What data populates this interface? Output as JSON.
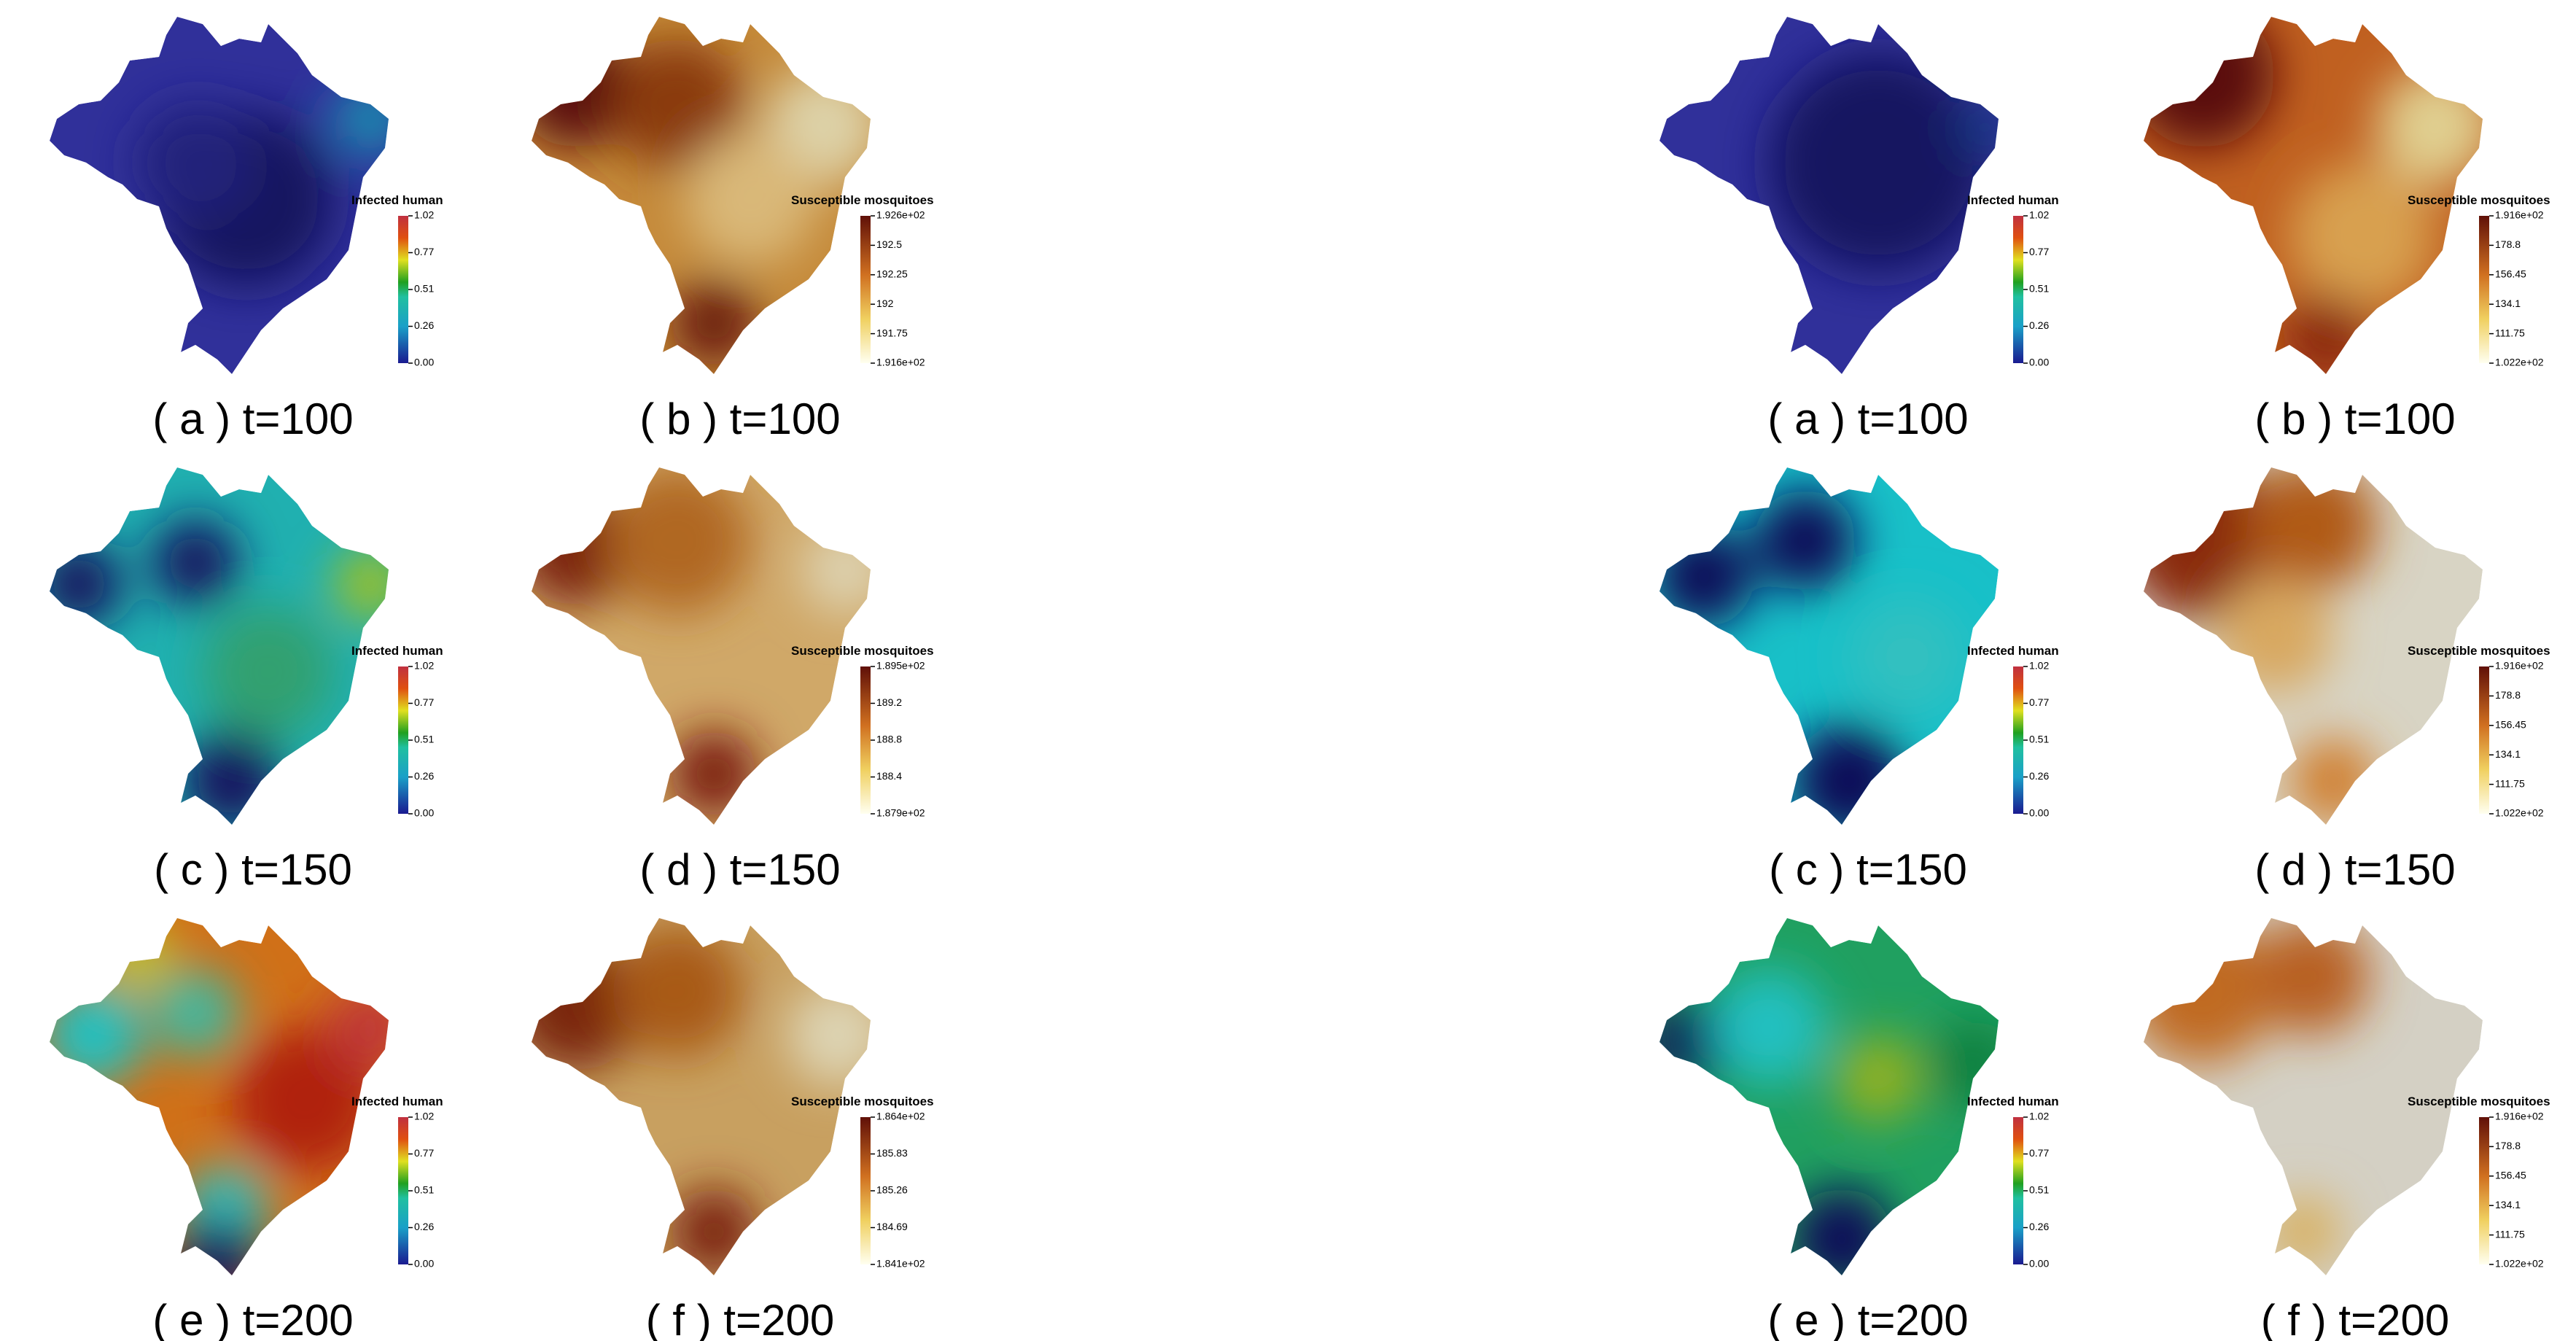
{
  "groups": [
    {
      "panels": [
        {
          "legend_title": "Infected human",
          "legend_ticks": [
            "1.02",
            "0.77",
            "0.51",
            "0.26",
            "0.00"
          ],
          "caption": "( a ) t=100"
        },
        {
          "legend_title": "Susceptible mosquitoes",
          "legend_ticks": [
            "1.926e+02",
            "192.5",
            "192.25",
            "192",
            "191.75",
            "1.916e+02"
          ],
          "caption": "( b ) t=100"
        },
        {
          "legend_title": "Infected human",
          "legend_ticks": [
            "1.02",
            "0.77",
            "0.51",
            "0.26",
            "0.00"
          ],
          "caption": "( c ) t=150"
        },
        {
          "legend_title": "Susceptible mosquitoes",
          "legend_ticks": [
            "1.895e+02",
            "189.2",
            "188.8",
            "188.4",
            "1.879e+02"
          ],
          "caption": "( d ) t=150"
        },
        {
          "legend_title": "Infected human",
          "legend_ticks": [
            "1.02",
            "0.77",
            "0.51",
            "0.26",
            "0.00"
          ],
          "caption": "( e ) t=200"
        },
        {
          "legend_title": "Susceptible mosquitoes",
          "legend_ticks": [
            "1.864e+02",
            "185.83",
            "185.26",
            "184.69",
            "1.841e+02"
          ],
          "caption": "( f ) t=200"
        }
      ]
    },
    {
      "panels": [
        {
          "legend_title": "Infected human",
          "legend_ticks": [
            "1.02",
            "0.77",
            "0.51",
            "0.26",
            "0.00"
          ],
          "caption": "( a ) t=100"
        },
        {
          "legend_title": "Susceptible mosquitoes",
          "legend_ticks": [
            "1.916e+02",
            "178.8",
            "156.45",
            "134.1",
            "111.75",
            "1.022e+02"
          ],
          "caption": "( b ) t=100"
        },
        {
          "legend_title": "Infected human",
          "legend_ticks": [
            "1.02",
            "0.77",
            "0.51",
            "0.26",
            "0.00"
          ],
          "caption": "( c ) t=150"
        },
        {
          "legend_title": "Susceptible mosquitoes",
          "legend_ticks": [
            "1.916e+02",
            "178.8",
            "156.45",
            "134.1",
            "111.75",
            "1.022e+02"
          ],
          "caption": "( d ) t=150"
        },
        {
          "legend_title": "Infected human",
          "legend_ticks": [
            "1.02",
            "0.77",
            "0.51",
            "0.26",
            "0.00"
          ],
          "caption": "( e ) t=200"
        },
        {
          "legend_title": "Susceptible mosquitoes",
          "legend_ticks": [
            "1.916e+02",
            "178.8",
            "156.45",
            "134.1",
            "111.75",
            "1.022e+02"
          ],
          "caption": "( f ) t=200"
        }
      ]
    }
  ]
}
